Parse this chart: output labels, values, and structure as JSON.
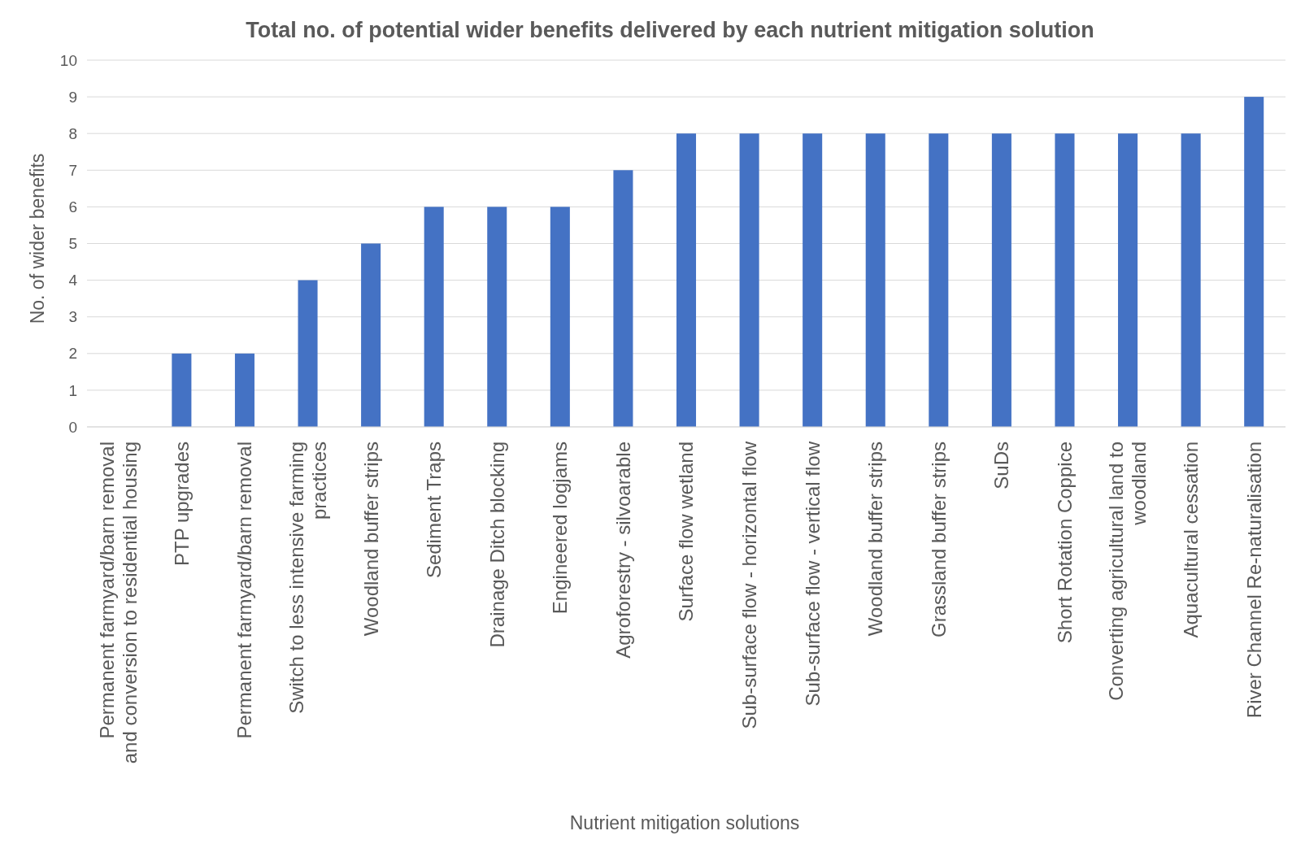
{
  "chart_data": {
    "type": "bar",
    "title": "Total no. of potential wider benefits delivered by each nutrient mitigation solution",
    "xlabel": "Nutrient mitigation solutions",
    "ylabel": "No. of wider benefits",
    "categories": [
      "Permanent farmyard/barn removal and conversion to residential housing",
      "PTP upgrades",
      "Permanent farmyard/barn removal",
      "Switch to less intensive farming practices",
      "Woodland buffer strips",
      "Sediment Traps",
      "Drainage Ditch blocking",
      "Engineered logjams",
      "Agroforestry - silvoarable",
      "Surface flow wetland",
      "Sub-surface flow - horizontal flow",
      "Sub-surface flow - vertical flow",
      "Woodland buffer strips",
      "Grassland buffer strips",
      "SuDs",
      "Short Rotation Coppice",
      "Converting agricultural land to woodland",
      "Aquacultural cessation",
      "River Channel Re-naturalisation"
    ],
    "values": [
      0,
      2,
      2,
      4,
      5,
      6,
      6,
      6,
      7,
      8,
      8,
      8,
      8,
      8,
      8,
      8,
      8,
      8,
      9
    ],
    "color": "#4472c4",
    "ylim": [
      0,
      10
    ],
    "yticks": [
      0,
      1,
      2,
      3,
      4,
      5,
      6,
      7,
      8,
      9,
      10
    ],
    "grid": "y"
  }
}
